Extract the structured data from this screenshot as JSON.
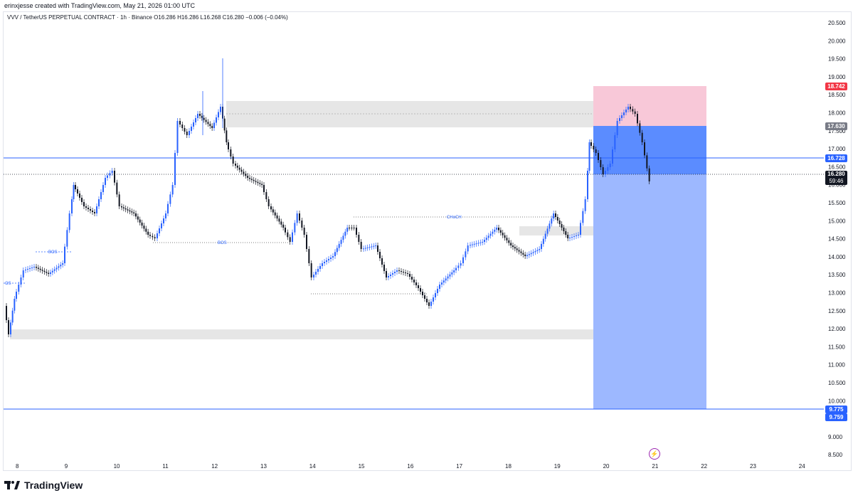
{
  "credit": "erinxjesse created with TradingView.com, May 21, 2026 01:00 UTC",
  "legend": {
    "symbol": "VVV / TetherUS PERPETUAL CONTRACT · 1h · Binance",
    "ohlc": "O16.286 H16.286 L16.268 C16.280 −0.006 (−0.04%)"
  },
  "price_axis": [
    "20.500",
    "20.000",
    "19.500",
    "19.000",
    "18.500",
    "18.000",
    "17.500",
    "17.000",
    "16.500",
    "16.000",
    "15.500",
    "15.000",
    "14.500",
    "14.000",
    "13.500",
    "13.000",
    "12.500",
    "12.000",
    "11.500",
    "11.000",
    "10.500",
    "10.000",
    "9.500",
    "9.000",
    "8.500"
  ],
  "time_axis": [
    "8",
    "9",
    "10",
    "11",
    "12",
    "13",
    "14",
    "15",
    "16",
    "17",
    "18",
    "19",
    "20",
    "21",
    "22",
    "23",
    "24"
  ],
  "price_tags": {
    "stop": "18.742",
    "entry": "17.630",
    "hline": "16.728",
    "last": "16.280",
    "countdown": "59:46",
    "target": "9.775",
    "target2": "9.759"
  },
  "annotations": {
    "bos_left": "OS",
    "bos1": "BOS",
    "bos2": "BOS",
    "choch": "CHoCH"
  },
  "colors": {
    "up": "#2962ff",
    "down": "#131722",
    "stop_zone": "#f8c8d8",
    "profit_dark": "#5b8cff",
    "profit_light": "#9db8ff",
    "stop_tag": "#f23645",
    "entry_tag": "#787b86",
    "blue_tag": "#2962ff"
  },
  "footer": {
    "brand": "TradingView"
  }
}
